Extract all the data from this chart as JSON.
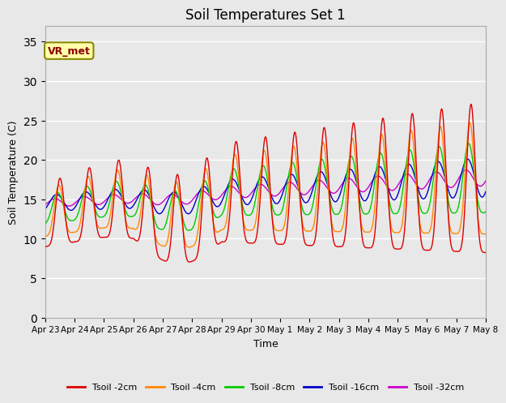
{
  "title": "Soil Temperatures Set 1",
  "xlabel": "Time",
  "ylabel": "Soil Temperature (C)",
  "ylim": [
    0,
    37
  ],
  "yticks": [
    0,
    5,
    10,
    15,
    20,
    25,
    30,
    35
  ],
  "annotation_label": "VR_met",
  "legend_entries": [
    "Tsoil -2cm",
    "Tsoil -4cm",
    "Tsoil -8cm",
    "Tsoil -16cm",
    "Tsoil -32cm"
  ],
  "line_colors": [
    "#dd0000",
    "#ff8800",
    "#00cc00",
    "#0000cc",
    "#cc00cc"
  ],
  "bg_color": "#e8e8e8",
  "plot_bg_color": "#e8e8e8",
  "grid_color": "#ffffff",
  "xtick_labels": [
    "Apr 23",
    "Apr 24",
    "Apr 25",
    "Apr 26",
    "Apr 27",
    "Apr 28",
    "Apr 29",
    "Apr 30",
    "May 1",
    "May 2",
    "May 3",
    "May 4",
    "May 5",
    "May 6",
    "May 7",
    "May 8"
  ]
}
